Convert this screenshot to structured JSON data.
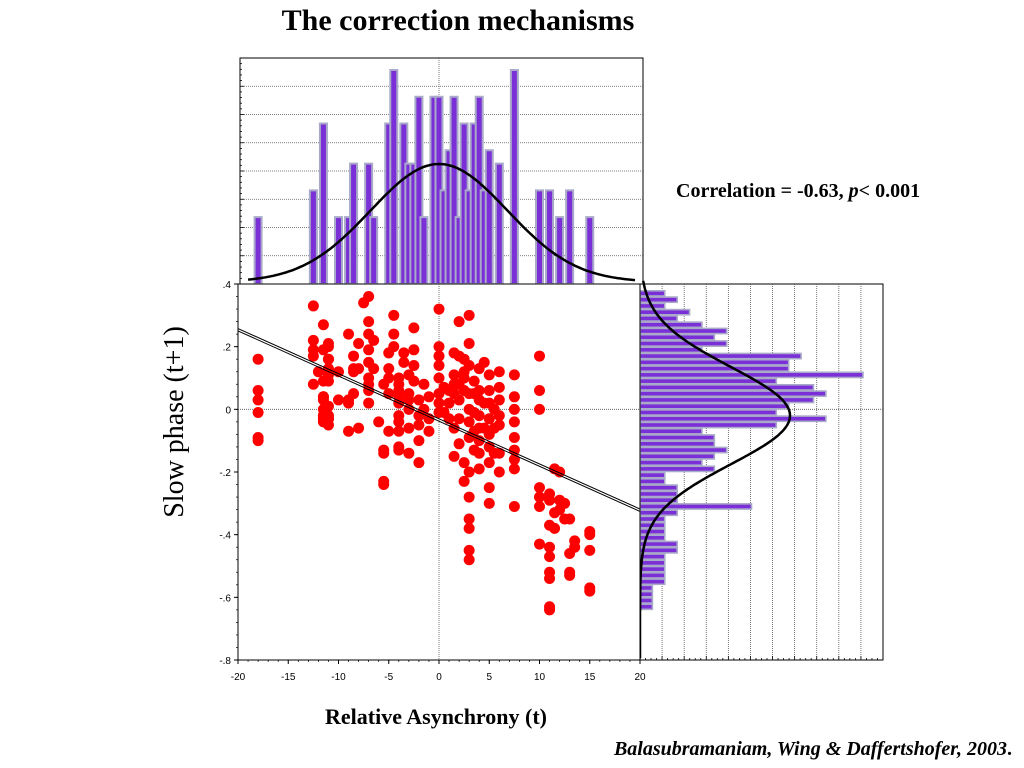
{
  "title": "The correction mechanisms",
  "correlation": {
    "prefix": "Correlation = -0.63, ",
    "p_symbol": "p",
    "suffix": "< 0.001"
  },
  "citation": "Balasubramaniam, Wing & Daffertshofer, 2003",
  "citation_end": ".",
  "colors": {
    "points": "#ff0000",
    "bars": "#7b2fd6",
    "bar_edge": "#a9a9c9",
    "curve": "#000000",
    "grid": "#555555"
  },
  "chart_data": [
    {
      "type": "scatter",
      "title": "The correction mechanisms",
      "xlabel": "Relative Asynchrony (t)",
      "ylabel": "Slow phase (t+1)",
      "xlim": [
        -20,
        20
      ],
      "ylim": [
        -0.8,
        0.4
      ],
      "x_ticks": [
        "-20",
        "-15",
        "-10",
        "-5",
        "0",
        "5",
        "10",
        "15",
        "20"
      ],
      "y_ticks": [
        "-.8",
        "-.6",
        "-.4",
        "-.2",
        "0",
        ".2",
        ".4"
      ],
      "correlation": -0.63,
      "p_value": "< 0.001",
      "regression": {
        "slope": -0.0144,
        "intercept": -0.034
      },
      "points": [
        [
          -18,
          0.16
        ],
        [
          -18,
          0.06
        ],
        [
          -18,
          0.03
        ],
        [
          -18,
          -0.01
        ],
        [
          -18,
          -0.09
        ],
        [
          -18,
          -0.1
        ],
        [
          -12.5,
          0.33
        ],
        [
          -12.5,
          0.22
        ],
        [
          -12.5,
          0.19
        ],
        [
          -12.5,
          0.17
        ],
        [
          -12.5,
          0.08
        ],
        [
          -12,
          0.12
        ],
        [
          -11.5,
          0.19
        ],
        [
          -11.5,
          0.09
        ],
        [
          -11.5,
          0.04
        ],
        [
          -11.5,
          -0.04
        ],
        [
          -11.5,
          -0.02
        ],
        [
          -11.5,
          -0.03
        ],
        [
          -11.5,
          0.03
        ],
        [
          -11,
          0.11
        ],
        [
          -11,
          0.16
        ],
        [
          -11,
          0.21
        ],
        [
          -11.5,
          0.27
        ],
        [
          -11.5,
          0.0
        ],
        [
          -11.5,
          -0.03
        ],
        [
          -11,
          -0.03
        ],
        [
          -11,
          0.01
        ],
        [
          -11,
          0.2
        ],
        [
          -11,
          0.16
        ],
        [
          -11,
          0.13
        ],
        [
          -11,
          0.09
        ],
        [
          -11,
          -0.05
        ],
        [
          -11,
          -0.02
        ],
        [
          -11,
          -0.03
        ],
        [
          -11,
          -0.03
        ],
        [
          -10,
          0.03
        ],
        [
          -10,
          0.12
        ],
        [
          -11.5,
          -0.02
        ],
        [
          -11.5,
          0.04
        ],
        [
          -9,
          0.24
        ],
        [
          -9,
          0.02
        ],
        [
          -8.5,
          0.12
        ],
        [
          -8.5,
          0.17
        ],
        [
          -8.5,
          0.13
        ],
        [
          -8.5,
          0.05
        ],
        [
          -8,
          0.13
        ],
        [
          -8,
          0.21
        ],
        [
          -7.5,
          0.34
        ],
        [
          -7,
          0.36
        ],
        [
          -7,
          0.28
        ],
        [
          -7,
          0.24
        ],
        [
          -7,
          0.19
        ],
        [
          -7,
          0.15
        ],
        [
          -7,
          0.1
        ],
        [
          -7,
          0.08
        ],
        [
          -7,
          0.06
        ],
        [
          -7,
          0.02
        ],
        [
          -6.5,
          0.13
        ],
        [
          -6.5,
          0.22
        ],
        [
          -9,
          0.03
        ],
        [
          -9,
          -0.07
        ],
        [
          -8,
          -0.06
        ],
        [
          -6,
          -0.04
        ],
        [
          -5.5,
          0.08
        ],
        [
          -5,
          0.18
        ],
        [
          -5,
          0.13
        ],
        [
          -5,
          0.1
        ],
        [
          -5,
          0.05
        ],
        [
          -5,
          -0.07
        ],
        [
          -5.5,
          -0.23
        ],
        [
          -5.5,
          -0.24
        ],
        [
          -5.5,
          -0.14
        ],
        [
          -5.5,
          -0.13
        ],
        [
          -4.5,
          0.3
        ],
        [
          -4.5,
          0.24
        ],
        [
          -4.5,
          0.2
        ],
        [
          -4,
          0.1
        ],
        [
          -4,
          0.08
        ],
        [
          -4,
          0.06
        ],
        [
          -4,
          0.04
        ],
        [
          -4,
          0.02
        ],
        [
          -4,
          -0.02
        ],
        [
          -4,
          -0.04
        ],
        [
          -4,
          -0.07
        ],
        [
          -4,
          -0.12
        ],
        [
          -4,
          -0.13
        ],
        [
          -3.5,
          0.18
        ],
        [
          -3.5,
          0.15
        ],
        [
          -3,
          0.11
        ],
        [
          -3,
          0.05
        ],
        [
          -3,
          0.03
        ],
        [
          -3,
          0.0
        ],
        [
          -3,
          -0.06
        ],
        [
          -3,
          -0.14
        ],
        [
          -2.5,
          0.26
        ],
        [
          -2.5,
          0.19
        ],
        [
          -2.5,
          0.14
        ],
        [
          -2.5,
          0.09
        ],
        [
          -2,
          0.03
        ],
        [
          -2,
          -0.02
        ],
        [
          -2,
          -0.05
        ],
        [
          -2,
          -0.1
        ],
        [
          -2,
          -0.17
        ],
        [
          -1.5,
          0.08
        ],
        [
          -1.5,
          0.0
        ],
        [
          -1,
          0.04
        ],
        [
          -1,
          -0.03
        ],
        [
          -1,
          -0.07
        ],
        [
          0,
          0.32
        ],
        [
          0,
          0.2
        ],
        [
          0,
          0.17
        ],
        [
          0,
          0.14
        ],
        [
          0,
          0.1
        ],
        [
          0,
          0.05
        ],
        [
          0,
          0.02
        ],
        [
          0,
          -0.01
        ],
        [
          0.5,
          0.07
        ],
        [
          0.5,
          -0.01
        ],
        [
          1,
          0.06
        ],
        [
          1,
          0.02
        ],
        [
          1,
          -0.03
        ],
        [
          1.5,
          0.18
        ],
        [
          1.5,
          0.11
        ],
        [
          1.5,
          0.08
        ],
        [
          1.5,
          0.05
        ],
        [
          1.5,
          -0.06
        ],
        [
          1.5,
          -0.15
        ],
        [
          2,
          0.28
        ],
        [
          2,
          0.17
        ],
        [
          2,
          0.08
        ],
        [
          2,
          0.03
        ],
        [
          2,
          -0.03
        ],
        [
          2,
          -0.11
        ],
        [
          2.5,
          0.16
        ],
        [
          2.5,
          0.12
        ],
        [
          2.5,
          0.1
        ],
        [
          2.5,
          0.06
        ],
        [
          2.5,
          -0.17
        ],
        [
          2.5,
          -0.23
        ],
        [
          3,
          0.3
        ],
        [
          3,
          0.21
        ],
        [
          3,
          0.14
        ],
        [
          3,
          0.05
        ],
        [
          3,
          0.0
        ],
        [
          3,
          -0.04
        ],
        [
          3,
          -0.09
        ],
        [
          3,
          -0.2
        ],
        [
          3,
          -0.28
        ],
        [
          3,
          -0.35
        ],
        [
          3,
          -0.38
        ],
        [
          3,
          -0.45
        ],
        [
          3,
          -0.48
        ],
        [
          3.5,
          0.09
        ],
        [
          3.5,
          0.05
        ],
        [
          3.5,
          -0.01
        ],
        [
          3.5,
          -0.07
        ],
        [
          3.5,
          -0.13
        ],
        [
          4,
          0.13
        ],
        [
          4,
          0.06
        ],
        [
          4,
          0.03
        ],
        [
          4,
          -0.02
        ],
        [
          4,
          -0.06
        ],
        [
          4,
          -0.1
        ],
        [
          4,
          -0.14
        ],
        [
          4,
          -0.19
        ],
        [
          4.5,
          0.15
        ],
        [
          4.5,
          0.02
        ],
        [
          4.5,
          -0.06
        ],
        [
          5,
          0.11
        ],
        [
          5,
          0.06
        ],
        [
          5,
          0.02
        ],
        [
          5,
          -0.03
        ],
        [
          5,
          -0.08
        ],
        [
          5,
          -0.12
        ],
        [
          5,
          -0.17
        ],
        [
          5,
          -0.25
        ],
        [
          5,
          -0.3
        ],
        [
          5.5,
          0.0
        ],
        [
          5.5,
          -0.06
        ],
        [
          5.5,
          -0.14
        ],
        [
          6,
          0.12
        ],
        [
          6,
          0.07
        ],
        [
          6,
          0.03
        ],
        [
          6,
          -0.02
        ],
        [
          6,
          -0.05
        ],
        [
          6,
          -0.14
        ],
        [
          6,
          -0.2
        ],
        [
          7.5,
          0.11
        ],
        [
          7.5,
          0.04
        ],
        [
          7.5,
          0.0
        ],
        [
          7.5,
          -0.04
        ],
        [
          7.5,
          -0.09
        ],
        [
          7.5,
          -0.13
        ],
        [
          7.5,
          -0.16
        ],
        [
          7.5,
          -0.19
        ],
        [
          7.5,
          -0.31
        ],
        [
          10,
          0.17
        ],
        [
          10,
          0.06
        ],
        [
          10,
          0.0
        ],
        [
          10,
          -0.25
        ],
        [
          10,
          -0.28
        ],
        [
          10,
          -0.31
        ],
        [
          10,
          -0.43
        ],
        [
          11,
          -0.27
        ],
        [
          11,
          -0.29
        ],
        [
          11,
          -0.37
        ],
        [
          11,
          -0.44
        ],
        [
          11,
          -0.47
        ],
        [
          11,
          -0.52
        ],
        [
          11,
          -0.54
        ],
        [
          11,
          -0.63
        ],
        [
          11,
          -0.64
        ],
        [
          11.5,
          -0.19
        ],
        [
          11.5,
          -0.33
        ],
        [
          11.5,
          -0.38
        ],
        [
          12,
          -0.2
        ],
        [
          12,
          -0.29
        ],
        [
          12,
          -0.32
        ],
        [
          12.5,
          -0.3
        ],
        [
          12.5,
          -0.35
        ],
        [
          13,
          -0.35
        ],
        [
          13,
          -0.46
        ],
        [
          13,
          -0.52
        ],
        [
          13,
          -0.53
        ],
        [
          13.5,
          -0.42
        ],
        [
          13.5,
          -0.44
        ],
        [
          15,
          -0.4
        ],
        [
          15,
          -0.45
        ],
        [
          15,
          -0.57
        ],
        [
          15,
          -0.58
        ],
        [
          15,
          -0.39
        ]
      ]
    },
    {
      "type": "bar",
      "title": "",
      "xlim": [
        -20,
        20
      ],
      "bin_centers": [
        -18,
        -12.5,
        -11.5,
        -10,
        -9,
        -8.5,
        -7,
        -6.5,
        -5,
        -4.5,
        -3.5,
        -3,
        -2.5,
        -2,
        -1.5,
        -0.5,
        0,
        0.5,
        1,
        1.5,
        2,
        2.5,
        3,
        3.5,
        4,
        4.5,
        5,
        6,
        7.5,
        10,
        11,
        12,
        13,
        15
      ],
      "counts": [
        5,
        7,
        12,
        5,
        5,
        9,
        9,
        5,
        12,
        16,
        12,
        9,
        9,
        14,
        5,
        14,
        14,
        7,
        10,
        14,
        5,
        12,
        7,
        12,
        14,
        7,
        10,
        9,
        16,
        7,
        7,
        5,
        7,
        5
      ]
    },
    {
      "type": "bar",
      "title": "",
      "orientation": "horizontal",
      "ylim": [
        -0.8,
        0.4
      ],
      "bin_centers": [
        0.37,
        0.35,
        0.33,
        0.31,
        0.29,
        0.27,
        0.25,
        0.23,
        0.21,
        0.19,
        0.17,
        0.15,
        0.13,
        0.11,
        0.09,
        0.07,
        0.05,
        0.03,
        0.01,
        -0.01,
        -0.03,
        -0.05,
        -0.07,
        -0.09,
        -0.11,
        -0.13,
        -0.15,
        -0.17,
        -0.19,
        -0.21,
        -0.23,
        -0.25,
        -0.27,
        -0.29,
        -0.31,
        -0.33,
        -0.35,
        -0.37,
        -0.39,
        -0.41,
        -0.43,
        -0.45,
        -0.47,
        -0.49,
        -0.51,
        -0.53,
        -0.55,
        -0.57,
        -0.59,
        -0.61,
        -0.63
      ],
      "counts": [
        2,
        3,
        2,
        4,
        3,
        5,
        7,
        6,
        7,
        5,
        13,
        12,
        12,
        18,
        11,
        14,
        15,
        14,
        12,
        11,
        15,
        11,
        5,
        6,
        6,
        7,
        6,
        5,
        6,
        2,
        2,
        3,
        3,
        3,
        9,
        3,
        2,
        2,
        2,
        2,
        3,
        3,
        2,
        2,
        2,
        2,
        2,
        1,
        1,
        1,
        1
      ]
    }
  ]
}
